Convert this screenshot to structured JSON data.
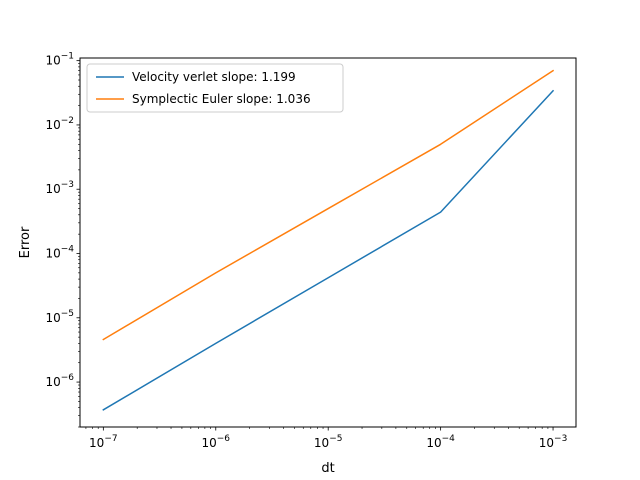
{
  "chart_data": {
    "type": "line",
    "title": "",
    "xlabel": "dt",
    "ylabel": "Error",
    "xscale": "log",
    "yscale": "log",
    "xlim": [
      6.2e-08,
      0.0016
    ],
    "ylim": [
      2e-07,
      0.11
    ],
    "grid": false,
    "legend_position": "top-left",
    "x": [
      1e-07,
      1e-06,
      1e-05,
      0.0001,
      0.001
    ],
    "series": [
      {
        "name": "Velocity verlet slope: 1.199",
        "color": "#1f77b4",
        "values": [
          3.7e-07,
          4e-06,
          4.2e-05,
          0.00044,
          0.034
        ]
      },
      {
        "name": "Symplectic Euler slope: 1.036",
        "color": "#ff7f0e",
        "values": [
          4.6e-06,
          5e-05,
          0.0005,
          0.005,
          0.07
        ]
      }
    ],
    "xticks": [
      {
        "value": 1e-07,
        "base": "10",
        "exp": "−7"
      },
      {
        "value": 1e-06,
        "base": "10",
        "exp": "−6"
      },
      {
        "value": 1e-05,
        "base": "10",
        "exp": "−5"
      },
      {
        "value": 0.0001,
        "base": "10",
        "exp": "−4"
      },
      {
        "value": 0.001,
        "base": "10",
        "exp": "−3"
      }
    ],
    "yticks": [
      {
        "value": 1e-06,
        "base": "10",
        "exp": "−6"
      },
      {
        "value": 1e-05,
        "base": "10",
        "exp": "−5"
      },
      {
        "value": 0.0001,
        "base": "10",
        "exp": "−4"
      },
      {
        "value": 0.001,
        "base": "10",
        "exp": "−3"
      },
      {
        "value": 0.01,
        "base": "10",
        "exp": "−2"
      },
      {
        "value": 0.1,
        "base": "10",
        "exp": "−1"
      }
    ]
  }
}
